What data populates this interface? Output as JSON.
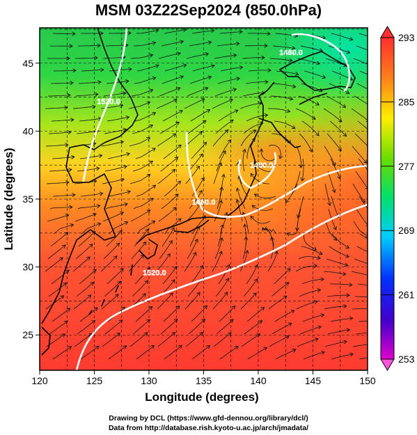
{
  "title": "MSM 03Z22Sep2024 (850.0hPa)",
  "map": {
    "type": "streamline-temperature-map",
    "xlabel": "Longitude (degrees)",
    "ylabel": "Latitude  (degrees)",
    "xlim": [
      120,
      150
    ],
    "ylim": [
      22.4,
      47.6
    ],
    "xticks": [
      "120",
      "125",
      "130",
      "135",
      "140",
      "145",
      "150"
    ],
    "yticks": [
      "25",
      "30",
      "35",
      "40",
      "45"
    ],
    "grid": true,
    "contours": [
      {
        "label": "1520.0",
        "lon": 126.3,
        "lat": 42.0
      },
      {
        "label": "1480.0",
        "lon": 135.0,
        "lat": 34.6
      },
      {
        "label": "1480.0",
        "lon": 140.3,
        "lat": 37.3
      },
      {
        "label": "1520.0",
        "lon": 130.5,
        "lat": 29.4
      },
      {
        "label": "1480.0",
        "lon": 143.0,
        "lat": 45.6
      }
    ]
  },
  "colorbar": {
    "labels": [
      "293",
      "285",
      "277",
      "269",
      "261",
      "253"
    ],
    "range": [
      253,
      293
    ],
    "colors": [
      "#d400c8",
      "#0000ff",
      "#00ccff",
      "#00ee66",
      "#66dd00",
      "#ffff00",
      "#ff9900",
      "#ee2222"
    ]
  },
  "credits": {
    "line1": "Drawing by DCL (https://www.gfd-dennou.org/library/dcl/)",
    "line2": "Data from http://database.rish.kyoto-u.ac.jp/arch/jmadata/"
  }
}
